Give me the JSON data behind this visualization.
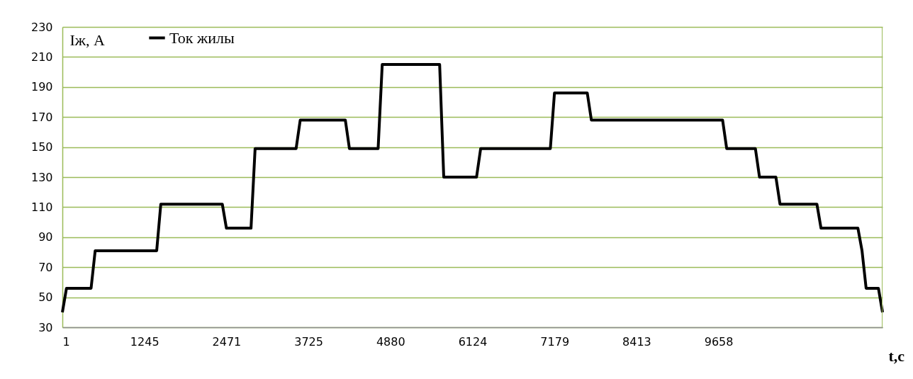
{
  "chart_data": {
    "type": "line",
    "xlabel": "t,c",
    "ylabel": "Iж, A",
    "categories": [
      "1",
      null,
      null,
      null,
      null,
      null,
      null,
      null,
      null,
      null,
      null,
      null,
      null,
      null,
      null,
      null,
      null,
      null,
      null,
      null,
      "1245",
      null,
      null,
      null,
      null,
      null,
      null,
      null,
      null,
      null,
      null,
      null,
      null,
      null,
      null,
      null,
      null,
      null,
      null,
      null,
      "2471",
      null,
      null,
      null,
      null,
      null,
      null,
      null,
      null,
      null,
      null,
      null,
      null,
      null,
      null,
      null,
      null,
      null,
      null,
      null,
      "3725",
      null,
      null,
      null,
      null,
      null,
      null,
      null,
      null,
      null,
      null,
      null,
      null,
      null,
      null,
      null,
      null,
      null,
      null,
      null,
      "4880",
      null,
      null,
      null,
      null,
      null,
      null,
      null,
      null,
      null,
      null,
      null,
      null,
      null,
      null,
      null,
      null,
      null,
      null,
      null,
      "6124",
      null,
      null,
      null,
      null,
      null,
      null,
      null,
      null,
      null,
      null,
      null,
      null,
      null,
      null,
      null,
      null,
      null,
      null,
      null,
      "7179",
      null,
      null,
      null,
      null,
      null,
      null,
      null,
      null,
      null,
      null,
      null,
      null,
      null,
      null,
      null,
      null,
      null,
      null,
      null,
      "8413",
      null,
      null,
      null,
      null,
      null,
      null,
      null,
      null,
      null,
      null,
      null,
      null,
      null,
      null,
      null,
      null,
      null,
      null,
      null,
      "9658",
      null,
      null,
      null,
      null,
      null,
      null,
      null,
      null,
      null,
      null,
      null,
      null,
      null,
      null,
      null,
      null,
      null,
      null,
      null,
      null,
      null,
      null,
      null,
      null,
      null,
      null,
      null,
      null,
      null,
      null,
      null,
      null,
      null,
      null,
      null,
      null,
      null,
      null,
      null,
      null
    ],
    "series": [
      {
        "name": "Ток жилы",
        "color": "#000000",
        "values": [
          40,
          56,
          56,
          56,
          56,
          56,
          56,
          56,
          81,
          81,
          81,
          81,
          81,
          81,
          81,
          81,
          81,
          81,
          81,
          81,
          81,
          81,
          81,
          81,
          112,
          112,
          112,
          112,
          112,
          112,
          112,
          112,
          112,
          112,
          112,
          112,
          112,
          112,
          112,
          112,
          96,
          96,
          96,
          96,
          96,
          96,
          96,
          149,
          149,
          149,
          149,
          149,
          149,
          149,
          149,
          149,
          149,
          149,
          168,
          168,
          168,
          168,
          168,
          168,
          168,
          168,
          168,
          168,
          168,
          168,
          149,
          149,
          149,
          149,
          149,
          149,
          149,
          149,
          205,
          205,
          205,
          205,
          205,
          205,
          205,
          205,
          205,
          205,
          205,
          205,
          205,
          205,
          205,
          130,
          130,
          130,
          130,
          130,
          130,
          130,
          130,
          130,
          149,
          149,
          149,
          149,
          149,
          149,
          149,
          149,
          149,
          149,
          149,
          149,
          149,
          149,
          149,
          149,
          149,
          149,
          186,
          186,
          186,
          186,
          186,
          186,
          186,
          186,
          186,
          168,
          168,
          168,
          168,
          168,
          168,
          168,
          168,
          168,
          168,
          168,
          168,
          168,
          168,
          168,
          168,
          168,
          168,
          168,
          168,
          168,
          168,
          168,
          168,
          168,
          168,
          168,
          168,
          168,
          168,
          168,
          168,
          168,
          149,
          149,
          149,
          149,
          149,
          149,
          149,
          149,
          130,
          130,
          130,
          130,
          130,
          112,
          112,
          112,
          112,
          112,
          112,
          112,
          112,
          112,
          112,
          96,
          96,
          96,
          96,
          96,
          96,
          96,
          96,
          96,
          96,
          81,
          56,
          56,
          56,
          56,
          40
        ]
      }
    ],
    "ylim": [
      30,
      230
    ],
    "yticks": [
      30,
      50,
      70,
      90,
      110,
      130,
      150,
      170,
      190,
      210,
      230
    ],
    "grid": "y",
    "legend": "top left",
    "marker": "none",
    "line_style": "solid"
  }
}
